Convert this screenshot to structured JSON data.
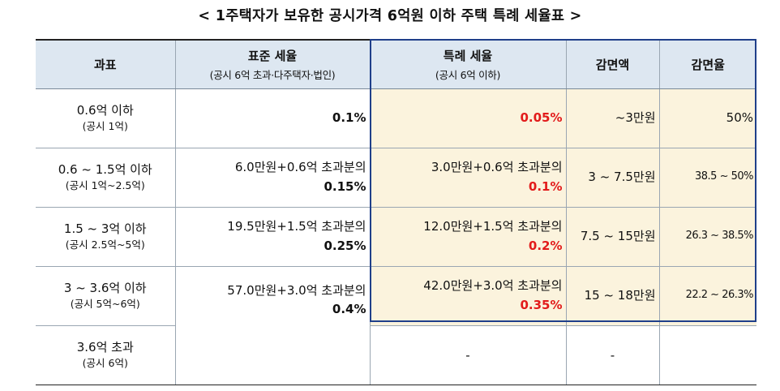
{
  "title": "< 1주택자가 보유한 공시가격 6억원 이하 주택 특례 세율표 >",
  "headers": {
    "bracket": "과표",
    "standard": "표준 세율",
    "standard_sub": "(공시 6억 초과·다주택자·법인)",
    "special": "특례 세율",
    "special_sub": "(공시 6억 이하)",
    "reduction_amount": "감면액",
    "reduction_rate": "감면율"
  },
  "rows": [
    {
      "bracket": "0.6억 이하",
      "bracket_sub": "(공시 1억)",
      "standard_base": "",
      "standard_rate": "0.1%",
      "special_base": "",
      "special_rate": "0.05%",
      "reduction_amount": "~3만원",
      "reduction_rate": "50%"
    },
    {
      "bracket": "0.6 ~ 1.5억 이하",
      "bracket_sub": "(공시 1억~2.5억)",
      "standard_base": "6.0만원+0.6억 초과분의",
      "standard_rate": "0.15%",
      "special_base": "3.0만원+0.6억 초과분의",
      "special_rate": "0.1%",
      "reduction_amount": "3 ~ 7.5만원",
      "reduction_rate": "38.5 ~ 50%"
    },
    {
      "bracket": "1.5 ~ 3억 이하",
      "bracket_sub": "(공시 2.5억~5억)",
      "standard_base": "19.5만원+1.5억 초과분의",
      "standard_rate": "0.25%",
      "special_base": "12.0만원+1.5억 초과분의",
      "special_rate": "0.2%",
      "reduction_amount": "7.5 ~ 15만원",
      "reduction_rate": "26.3 ~ 38.5%"
    },
    {
      "bracket": "3 ~ 3.6억 이하",
      "bracket_sub": "(공시 5억~6억)",
      "standard_base": "57.0만원+3.0억 초과분의",
      "standard_rate": "0.4%",
      "special_base": "42.0만원+3.0억 초과분의",
      "special_rate": "0.35%",
      "reduction_amount": "15 ~ 18만원",
      "reduction_rate": "22.2 ~ 26.3%"
    },
    {
      "bracket": "3.6억 초과",
      "bracket_sub": "(공시 6억)",
      "special_none": "-",
      "reduction_amount": "-",
      "reduction_rate": ""
    }
  ],
  "colors": {
    "header_bg": "#dde7f1",
    "special_bg": "#fbf3dd",
    "special_rate": "#e21b1b",
    "frame": "#1f3f8a"
  }
}
